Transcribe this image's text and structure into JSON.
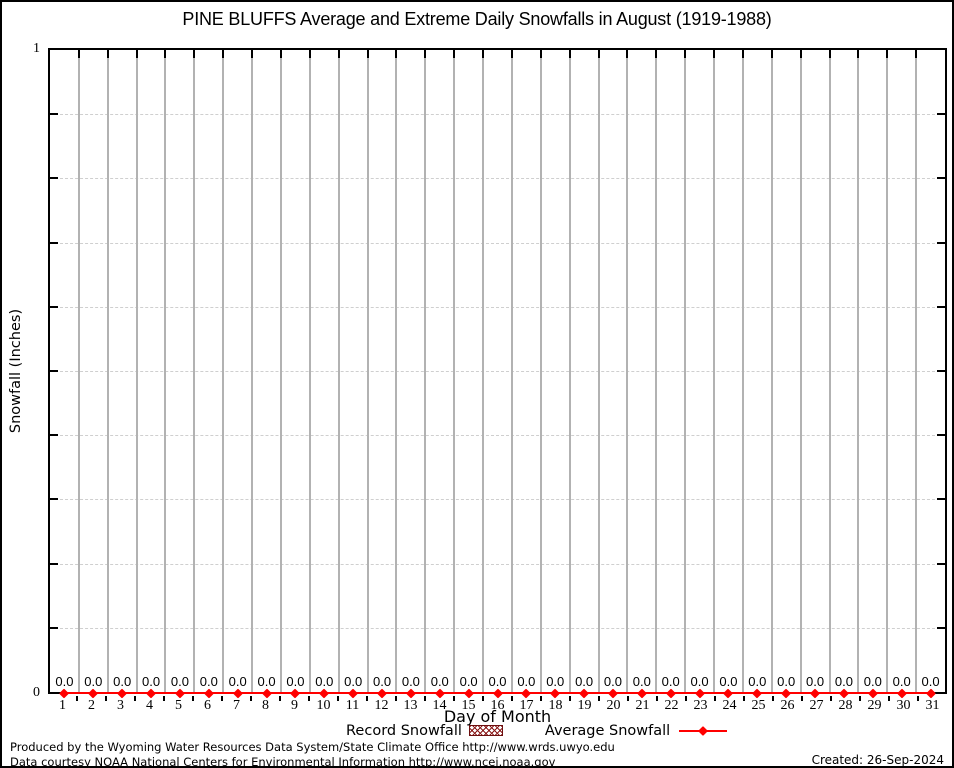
{
  "title": "PINE BLUFFS Average and Extreme Daily Snowfalls in August (1919-1988)",
  "axes": {
    "x_label": "Day of Month",
    "y_label": "Snowfall (Inches)",
    "y_tick_top": "1",
    "y_tick_bottom": "0"
  },
  "legend": {
    "record_label": "Record Snowfall",
    "average_label": "Average Snowfall"
  },
  "footer": {
    "line1": "Produced by the Wyoming Water Resources Data System/State Climate Office http://www.wrds.uwyo.edu",
    "line2": "Data courtesy NOAA National Centers for Environmental Information http://www.ncei.noaa.gov",
    "created": "Created: 26-Sep-2024"
  },
  "colors": {
    "average_line": "#ff0000",
    "record_hatch": "#8b1a1a",
    "record_border": "#6d0f0f",
    "grid_vertical": "#b2b2b2",
    "grid_horizontal_dashed": "#cfcfcf",
    "axis": "#000000"
  },
  "chart_data": {
    "type": "line",
    "title": "PINE BLUFFS Average and Extreme Daily Snowfalls in August (1919-1988)",
    "xlabel": "Day of Month",
    "ylabel": "Snowfall (Inches)",
    "x": [
      1,
      2,
      3,
      4,
      5,
      6,
      7,
      8,
      9,
      10,
      11,
      12,
      13,
      14,
      15,
      16,
      17,
      18,
      19,
      20,
      21,
      22,
      23,
      24,
      25,
      26,
      27,
      28,
      29,
      30,
      31
    ],
    "series": [
      {
        "name": "Record Snowfall",
        "style": "hatched-bar",
        "color": "#8b1a1a",
        "values": [
          0,
          0,
          0,
          0,
          0,
          0,
          0,
          0,
          0,
          0,
          0,
          0,
          0,
          0,
          0,
          0,
          0,
          0,
          0,
          0,
          0,
          0,
          0,
          0,
          0,
          0,
          0,
          0,
          0,
          0,
          0
        ]
      },
      {
        "name": "Average Snowfall",
        "style": "line-points",
        "color": "#ff0000",
        "values": [
          0.0,
          0.0,
          0.0,
          0.0,
          0.0,
          0.0,
          0.0,
          0.0,
          0.0,
          0.0,
          0.0,
          0.0,
          0.0,
          0.0,
          0.0,
          0.0,
          0.0,
          0.0,
          0.0,
          0.0,
          0.0,
          0.0,
          0.0,
          0.0,
          0.0,
          0.0,
          0.0,
          0.0,
          0.0,
          0.0,
          0.0
        ]
      }
    ],
    "point_labels_decimals": 1,
    "ylim": [
      0,
      1
    ],
    "xlim": [
      0.5,
      31.5
    ],
    "y_minor_tick_interval": 0.1,
    "grid": {
      "vertical": "solid-at-day-boundaries",
      "horizontal": "dashed-every-0.1"
    },
    "legend_position": "below-x-axis"
  }
}
